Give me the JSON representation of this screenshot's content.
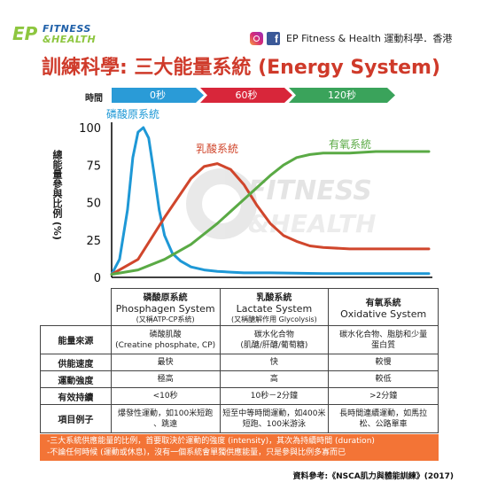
{
  "brand": {
    "ep": "EP",
    "fitness": "FITNESS",
    "health": "&HEALTH"
  },
  "social_text": "EP Fitness & Health 運動科學．香港",
  "title": "訓練科學: 三大能量系統 (Energy System)",
  "time": {
    "label": "時間",
    "arrows": [
      {
        "label": "0秒",
        "color": "#2a9bd7"
      },
      {
        "label": "60秒",
        "color": "#d8263a"
      },
      {
        "label": "120秒",
        "color": "#3aa35b"
      }
    ]
  },
  "watermark": {
    "line1": "FITNESS",
    "line2": "&HEALTH"
  },
  "chart_data": {
    "type": "line",
    "ylabel": "總能量參與比例 (%)",
    "ylim": [
      0,
      100
    ],
    "yticks": [
      0,
      25,
      50,
      75,
      100
    ],
    "xlim": [
      0,
      120
    ],
    "grid": false,
    "series": [
      {
        "name": "磷酸原系統",
        "color": "#1e98d6",
        "x": [
          0,
          3,
          6,
          8,
          10,
          12,
          14,
          16,
          18,
          20,
          23,
          26,
          30,
          35,
          40,
          45,
          50,
          60,
          80,
          100,
          120
        ],
        "y": [
          2,
          12,
          45,
          80,
          97,
          100,
          93,
          70,
          45,
          28,
          16,
          11,
          7,
          5,
          4,
          3.5,
          3,
          3,
          2.5,
          2.5,
          2.5
        ]
      },
      {
        "name": "乳酸系統",
        "color": "#d0462c",
        "x": [
          0,
          10,
          20,
          30,
          35,
          40,
          45,
          50,
          55,
          60,
          65,
          70,
          75,
          80,
          90,
          100,
          110,
          120
        ],
        "y": [
          2,
          12,
          40,
          66,
          74,
          76,
          72,
          62,
          48,
          36,
          28,
          24,
          21,
          20,
          19,
          19,
          19,
          19
        ]
      },
      {
        "name": "有氧系統",
        "color": "#5aaa45",
        "x": [
          0,
          10,
          20,
          30,
          40,
          50,
          55,
          60,
          65,
          70,
          75,
          80,
          90,
          100,
          110,
          120
        ],
        "y": [
          2,
          5,
          12,
          22,
          36,
          52,
          60,
          68,
          75,
          80,
          82,
          83,
          83,
          84,
          84,
          84
        ]
      }
    ]
  },
  "table": {
    "columns": [
      {
        "zh": "磷酸原系統",
        "en": "Phosphagen System",
        "sub": "(又稱ATP-CP系統)"
      },
      {
        "zh": "乳酸系統",
        "en": "Lactate System",
        "sub": "(又稱醣解作用 Glycolysis)"
      },
      {
        "zh": "有氧系統",
        "en": "Oxidative System",
        "sub": ""
      }
    ],
    "rows": [
      {
        "label": "能量來源",
        "cells": [
          [
            "磷酸肌酸",
            "(Creatine phosphate, CP)"
          ],
          [
            "碳水化合物",
            "(肌醣/肝醣/葡萄糖)"
          ],
          [
            "碳水化合物、脂肪和少量",
            "蛋白質"
          ]
        ]
      },
      {
        "label": "供能速度",
        "cells": [
          [
            "最快"
          ],
          [
            "快"
          ],
          [
            "較慢"
          ]
        ]
      },
      {
        "label": "運動強度",
        "cells": [
          [
            "極高"
          ],
          [
            "高"
          ],
          [
            "較低"
          ]
        ]
      },
      {
        "label": "有效持續",
        "cells": [
          [
            "<10秒"
          ],
          [
            "10秒－2分鐘"
          ],
          [
            ">2分鐘"
          ]
        ]
      },
      {
        "label": "項目例子",
        "cells": [
          [
            "爆發性運動，如100米短跑",
            "、跳遠"
          ],
          [
            "短至中等時間運動，如400米",
            "短跑、100米游泳"
          ],
          [
            "長時間連續運動，如馬拉",
            "松、公路單車"
          ]
        ]
      }
    ]
  },
  "notes": [
    "-三大系統供應能量的比例，首要取決於運動的強度 (intensity)，其次為持續時間 (duration)",
    "-不論任何時候 (運動或休息)，沒有一個系統會單獨供應能量，只是參與比例多寡而已"
  ],
  "source": "資料參考:《NSCA肌力與體能訓練》(2017)"
}
